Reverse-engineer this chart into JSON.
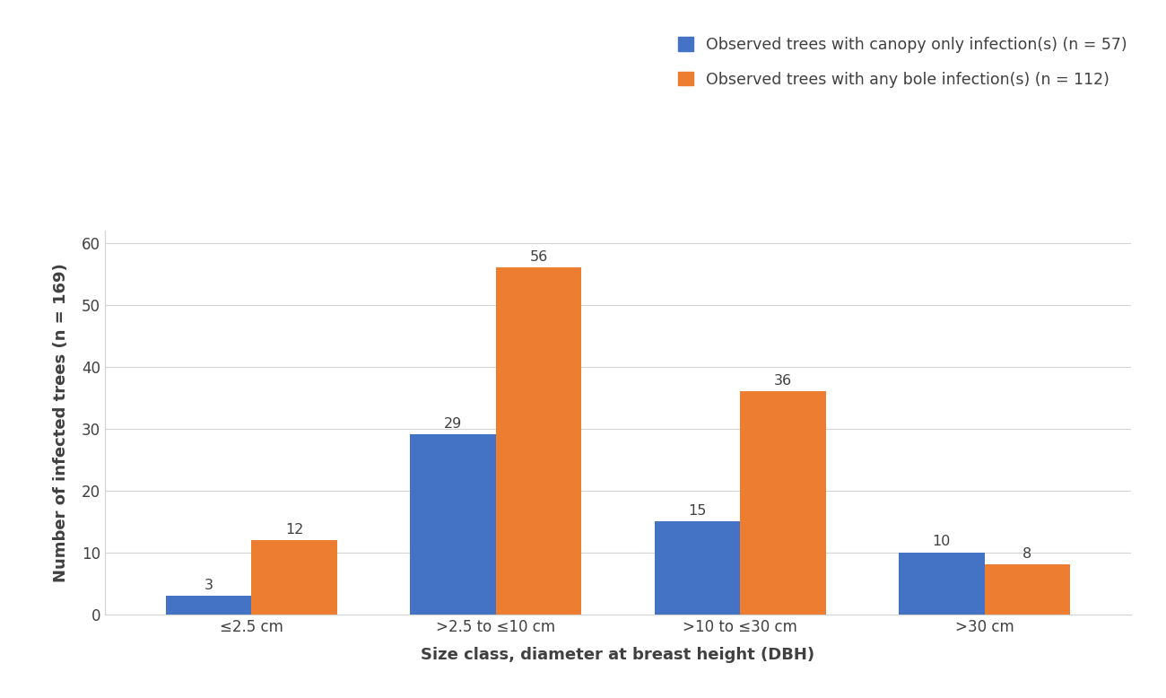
{
  "categories": [
    "≤2.5 cm",
    ">2.5 to ≤10 cm",
    ">10 to ≤30 cm",
    ">30 cm"
  ],
  "blue_values": [
    3,
    29,
    15,
    10
  ],
  "orange_values": [
    12,
    56,
    36,
    8
  ],
  "blue_color": "#4472C4",
  "orange_color": "#ED7D31",
  "blue_label": "Observed trees with canopy only infection(s) (n = 57)",
  "orange_label": "Observed trees with any bole infection(s) (n = 112)",
  "xlabel": "Size class, diameter at breast height (DBH)",
  "ylabel": "Number of infected trees (n = 169)",
  "ylim": [
    0,
    62
  ],
  "yticks": [
    0,
    10,
    20,
    30,
    40,
    50,
    60
  ],
  "bar_width": 0.35,
  "label_fontsize": 13,
  "tick_fontsize": 12,
  "legend_fontsize": 12.5,
  "annotation_fontsize": 11.5,
  "background_color": "#ffffff",
  "grid_color": "#d4d4d4"
}
